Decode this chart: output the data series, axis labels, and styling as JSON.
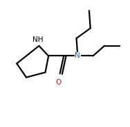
{
  "bg": "#ffffff",
  "bond_color": "#000000",
  "N_color": "#2255cc",
  "O_color": "#dd1100",
  "NH_color": "#000000",
  "lw": 1.6,
  "fs": 7.5,
  "xlim": [
    0.0,
    1.0
  ],
  "ylim": [
    0.0,
    1.0
  ],
  "ring": [
    [
      0.295,
      0.64
    ],
    [
      0.37,
      0.56
    ],
    [
      0.345,
      0.43
    ],
    [
      0.195,
      0.39
    ],
    [
      0.12,
      0.5
    ]
  ],
  "carbonyl_C": [
    0.49,
    0.56
  ],
  "oxygen": [
    0.46,
    0.42
  ],
  "amide_N": [
    0.6,
    0.56
  ],
  "chain1": [
    [
      0.6,
      0.56
    ],
    [
      0.59,
      0.7
    ],
    [
      0.7,
      0.78
    ],
    [
      0.69,
      0.92
    ]
  ],
  "chain2": [
    [
      0.6,
      0.56
    ],
    [
      0.72,
      0.56
    ],
    [
      0.81,
      0.64
    ],
    [
      0.93,
      0.64
    ]
  ],
  "NH_label": [
    0.285,
    0.69
  ],
  "N_label": [
    0.6,
    0.56
  ],
  "O_label": [
    0.448,
    0.35
  ]
}
